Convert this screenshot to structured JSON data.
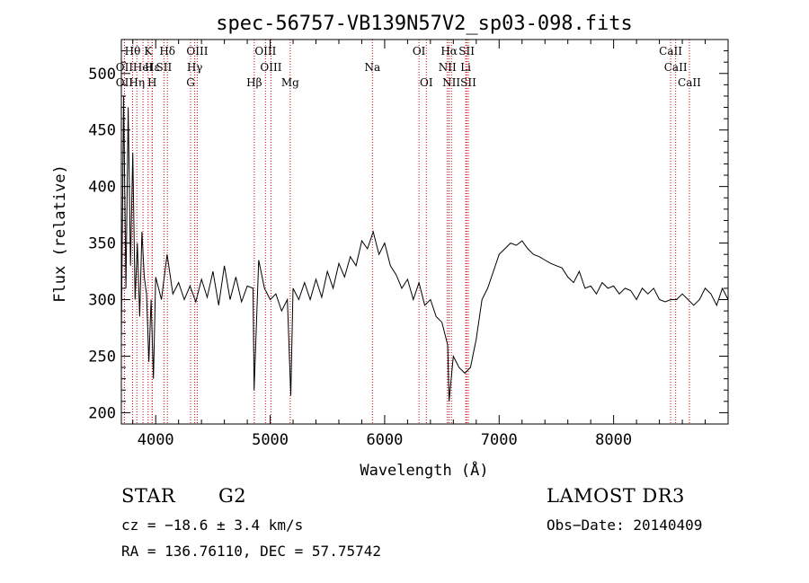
{
  "chart_data": {
    "type": "line",
    "title": "spec-56757-VB139N57V2_sp03-098.fits",
    "xlabel": "Wavelength (Å)",
    "ylabel": "Flux (relative)",
    "xlim": [
      3700,
      9000
    ],
    "ylim": [
      190,
      530
    ],
    "xticks": [
      4000,
      5000,
      6000,
      7000,
      8000
    ],
    "yticks": [
      200,
      250,
      300,
      350,
      400,
      450,
      500
    ],
    "series": [
      {
        "name": "flux",
        "x": [
          3700,
          3720,
          3740,
          3760,
          3780,
          3800,
          3820,
          3840,
          3860,
          3880,
          3900,
          3920,
          3940,
          3960,
          3980,
          4000,
          4050,
          4100,
          4150,
          4200,
          4250,
          4300,
          4350,
          4400,
          4450,
          4500,
          4550,
          4600,
          4650,
          4700,
          4750,
          4800,
          4850,
          4860,
          4900,
          4950,
          5000,
          5050,
          5100,
          5150,
          5180,
          5200,
          5250,
          5300,
          5350,
          5400,
          5450,
          5500,
          5550,
          5600,
          5650,
          5700,
          5750,
          5800,
          5850,
          5900,
          5950,
          6000,
          6050,
          6100,
          6150,
          6200,
          6250,
          6300,
          6350,
          6400,
          6450,
          6500,
          6550,
          6563,
          6600,
          6650,
          6700,
          6750,
          6800,
          6850,
          6900,
          6950,
          7000,
          7050,
          7100,
          7150,
          7200,
          7250,
          7300,
          7350,
          7400,
          7450,
          7500,
          7550,
          7600,
          7650,
          7700,
          7750,
          7800,
          7850,
          7900,
          7950,
          8000,
          8050,
          8100,
          8150,
          8200,
          8250,
          8300,
          8350,
          8400,
          8450,
          8500,
          8550,
          8600,
          8650,
          8700,
          8750,
          8800,
          8850,
          8900,
          8950,
          9000
        ],
        "y": [
          265,
          480,
          310,
          470,
          330,
          430,
          300,
          350,
          285,
          360,
          320,
          305,
          245,
          300,
          230,
          320,
          300,
          340,
          305,
          315,
          300,
          312,
          298,
          318,
          302,
          325,
          295,
          330,
          300,
          320,
          298,
          312,
          310,
          220,
          335,
          310,
          300,
          305,
          290,
          300,
          215,
          310,
          300,
          315,
          300,
          318,
          302,
          325,
          310,
          332,
          320,
          338,
          330,
          352,
          345,
          360,
          340,
          350,
          330,
          322,
          310,
          318,
          300,
          315,
          295,
          300,
          285,
          280,
          260,
          210,
          250,
          240,
          235,
          240,
          265,
          300,
          310,
          325,
          340,
          345,
          350,
          348,
          352,
          345,
          340,
          338,
          335,
          332,
          330,
          328,
          320,
          315,
          325,
          310,
          312,
          305,
          315,
          310,
          312,
          305,
          310,
          308,
          300,
          310,
          305,
          310,
          300,
          298,
          300,
          300,
          305,
          300,
          295,
          300,
          310,
          305,
          295,
          310,
          300
        ]
      }
    ],
    "lines": [
      {
        "name": "Hθ",
        "x": 3798,
        "row": 1
      },
      {
        "name": "OII",
        "x": 3727,
        "row": 2
      },
      {
        "name": "OII",
        "x": 3727,
        "row": 3
      },
      {
        "name": "K",
        "x": 3934,
        "row": 1
      },
      {
        "name": "Hε",
        "x": 3970,
        "row": 2
      },
      {
        "name": "Hη",
        "x": 3835,
        "row": 3
      },
      {
        "name": "HeI",
        "x": 3889,
        "row": 2
      },
      {
        "name": "H",
        "x": 3969,
        "row": 3
      },
      {
        "name": "Hδ",
        "x": 4102,
        "row": 1
      },
      {
        "name": "SII",
        "x": 4072,
        "row": 2
      },
      {
        "name": "OIII",
        "x": 4363,
        "row": 1
      },
      {
        "name": "Hγ",
        "x": 4341,
        "row": 2
      },
      {
        "name": "G",
        "x": 4305,
        "row": 3
      },
      {
        "name": "Hβ",
        "x": 4861,
        "row": 3
      },
      {
        "name": "OIII",
        "x": 4959,
        "row": 1
      },
      {
        "name": "OIII",
        "x": 5007,
        "row": 2
      },
      {
        "name": "Mg",
        "x": 5175,
        "row": 3
      },
      {
        "name": "Na",
        "x": 5893,
        "row": 2
      },
      {
        "name": "OI",
        "x": 6300,
        "row": 1
      },
      {
        "name": "OI",
        "x": 6364,
        "row": 3
      },
      {
        "name": "Hα",
        "x": 6563,
        "row": 1
      },
      {
        "name": "NII",
        "x": 6548,
        "row": 2
      },
      {
        "name": "NII",
        "x": 6583,
        "row": 3
      },
      {
        "name": "SII",
        "x": 6716,
        "row": 1
      },
      {
        "name": "Li",
        "x": 6708,
        "row": 2
      },
      {
        "name": "SII",
        "x": 6731,
        "row": 3
      },
      {
        "name": "CaII",
        "x": 8498,
        "row": 1
      },
      {
        "name": "CaII",
        "x": 8542,
        "row": 2
      },
      {
        "name": "CaII",
        "x": 8662,
        "row": 3
      }
    ]
  },
  "info": {
    "object_class": "STAR",
    "subclass": "G2",
    "survey": "LAMOST DR3",
    "redshift": "cz = −18.6 ± 3.4 km/s",
    "obs_date": "Obs−Date: 20140409",
    "coords": "RA = 136.76110, DEC =  57.75742"
  },
  "colors": {
    "axis": "#000000",
    "spectrum": "#000000",
    "marker_line": "#cc0000"
  }
}
